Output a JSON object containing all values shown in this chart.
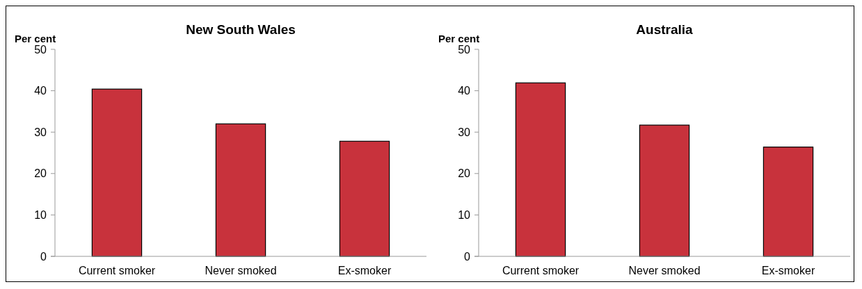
{
  "chart_data": [
    {
      "type": "bar",
      "title": "New South Wales",
      "ylabel": "Per cent",
      "categories": [
        "Current smoker",
        "Never smoked",
        "Ex-smoker"
      ],
      "values": [
        40.4,
        32.0,
        27.8
      ],
      "color": "#c8323c",
      "ylim": [
        0,
        50
      ],
      "yticks": [
        0,
        10,
        20,
        30,
        40,
        50
      ],
      "grid": false
    },
    {
      "type": "bar",
      "title": "Australia",
      "ylabel": "Per cent",
      "categories": [
        "Current smoker",
        "Never smoked",
        "Ex-smoker"
      ],
      "values": [
        41.9,
        31.7,
        26.4
      ],
      "color": "#c8323c",
      "ylim": [
        0,
        50
      ],
      "yticks": [
        0,
        10,
        20,
        30,
        40,
        50
      ],
      "grid": false
    }
  ]
}
